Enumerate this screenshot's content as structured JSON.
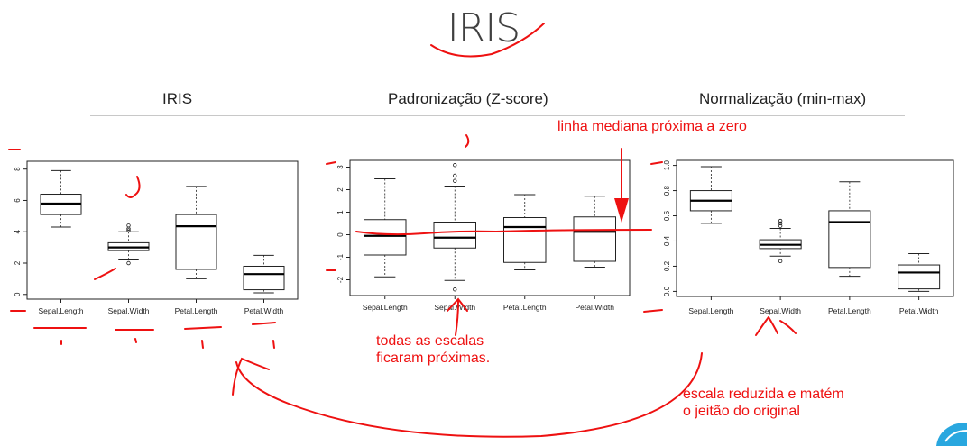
{
  "slide": {
    "title": "IRIS"
  },
  "panels": [
    {
      "title": "IRIS"
    },
    {
      "title": "Padronização (Z-score)"
    },
    {
      "title": "Normalização (min-max)"
    }
  ],
  "annotations": {
    "median_line": "linha mediana próxima a zero",
    "scales_close": [
      "todas as escalas",
      "ficaram próximas."
    ],
    "reduced_scale": [
      "escala reduzida e matém",
      "o jeitão do original"
    ]
  },
  "colors": {
    "annotation": "#ee1111",
    "box_fill": "#ffffff",
    "median": "#000000"
  },
  "chart_data": [
    {
      "type": "box",
      "categories": [
        "Sepal.Length",
        "Sepal.Width",
        "Petal.Length",
        "Petal.Width"
      ],
      "ylim": [
        -0.3,
        8.5
      ],
      "yticks": [
        "0",
        "2",
        "4",
        "6",
        "8"
      ],
      "boxes": [
        {
          "min": 4.3,
          "q1": 5.1,
          "median": 5.8,
          "q3": 6.4,
          "max": 7.9,
          "outliers": []
        },
        {
          "min": 2.2,
          "q1": 2.8,
          "median": 3.0,
          "q3": 3.3,
          "max": 4.0,
          "outliers": [
            2.0,
            4.1,
            4.2,
            4.4
          ]
        },
        {
          "min": 1.0,
          "q1": 1.6,
          "median": 4.35,
          "q3": 5.1,
          "max": 6.9,
          "outliers": []
        },
        {
          "min": 0.1,
          "q1": 0.3,
          "median": 1.3,
          "q3": 1.8,
          "max": 2.5,
          "outliers": []
        }
      ]
    },
    {
      "type": "box",
      "categories": [
        "Sepal.Length",
        "Sepal.Width",
        "Petal.Length",
        "Petal.Width"
      ],
      "ylim": [
        -2.7,
        3.3
      ],
      "yticks": [
        "-2",
        "-1",
        "0",
        "1",
        "2",
        "3"
      ],
      "boxes": [
        {
          "min": -1.87,
          "q1": -0.9,
          "median": -0.05,
          "q3": 0.67,
          "max": 2.48,
          "outliers": []
        },
        {
          "min": -2.03,
          "q1": -0.59,
          "median": -0.13,
          "q3": 0.56,
          "max": 2.16,
          "outliers": [
            -2.43,
            2.39,
            2.62,
            3.09
          ]
        },
        {
          "min": -1.56,
          "q1": -1.23,
          "median": 0.34,
          "q3": 0.76,
          "max": 1.78,
          "outliers": []
        },
        {
          "min": -1.44,
          "q1": -1.18,
          "median": 0.13,
          "q3": 0.79,
          "max": 1.71,
          "outliers": []
        }
      ]
    },
    {
      "type": "box",
      "categories": [
        "Sepal.Length",
        "Sepal.Width",
        "Petal.Length",
        "Petal.Width"
      ],
      "ylim": [
        -0.04,
        1.04
      ],
      "yticks": [
        "0.0",
        "0.2",
        "0.4",
        "0.6",
        "0.8",
        "1.0"
      ],
      "boxes": [
        {
          "min": 0.54,
          "q1": 0.64,
          "median": 0.72,
          "q3": 0.8,
          "max": 0.99,
          "outliers": []
        },
        {
          "min": 0.28,
          "q1": 0.34,
          "median": 0.37,
          "q3": 0.41,
          "max": 0.5,
          "outliers": [
            0.24,
            0.52,
            0.54,
            0.56
          ]
        },
        {
          "min": 0.12,
          "q1": 0.19,
          "median": 0.55,
          "q3": 0.64,
          "max": 0.87,
          "outliers": []
        },
        {
          "min": 0.0,
          "q1": 0.02,
          "median": 0.15,
          "q3": 0.21,
          "max": 0.3,
          "outliers": []
        }
      ]
    }
  ]
}
